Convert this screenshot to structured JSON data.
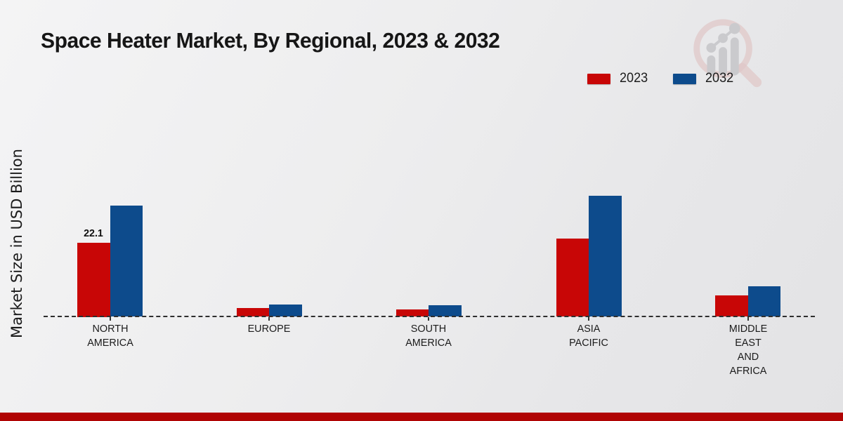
{
  "title": "Space Heater Market, By Regional, 2023 & 2032",
  "y_axis_label": "Market Size in USD Billion",
  "legend": {
    "items": [
      {
        "label": "2023",
        "color": "#c80606"
      },
      {
        "label": "2032",
        "color": "#0d4b8c"
      }
    ]
  },
  "colors": {
    "bar_2023": "#c80606",
    "bar_2032": "#0d4b8c",
    "footer_strip": "#b00404",
    "axis_dash": "#2e2e2e",
    "watermark_ring": "#dfc3c3",
    "watermark_bars": "#c5c5c9"
  },
  "chart_data": {
    "type": "bar",
    "title": "Space Heater Market, By Regional, 2023 & 2032",
    "xlabel": "",
    "ylabel": "Market Size in USD Billion",
    "categories": [
      "NORTH AMERICA",
      "EUROPE",
      "SOUTH AMERICA",
      "ASIA PACIFIC",
      "MIDDLE EAST AND AFRICA"
    ],
    "category_display_lines": [
      [
        "NORTH",
        "AMERICA"
      ],
      [
        "EUROPE"
      ],
      [
        "SOUTH",
        "AMERICA"
      ],
      [
        "ASIA",
        "PACIFIC"
      ],
      [
        "MIDDLE",
        "EAST",
        "AND",
        "AFRICA"
      ]
    ],
    "series": [
      {
        "name": "2023",
        "color": "#c80606",
        "values": [
          22.1,
          2.7,
          2.1,
          23.4,
          6.3
        ],
        "data_labels": [
          "22.1",
          null,
          null,
          null,
          null
        ]
      },
      {
        "name": "2032",
        "color": "#0d4b8c",
        "values": [
          33.2,
          3.7,
          3.5,
          36.2,
          9.2
        ],
        "data_labels": [
          null,
          null,
          null,
          null,
          null
        ]
      }
    ],
    "ylim": [
      0,
      40
    ],
    "gridlines": false,
    "legend_position": "top-right",
    "baseline_style": "dashed",
    "units": "USD Billion"
  }
}
